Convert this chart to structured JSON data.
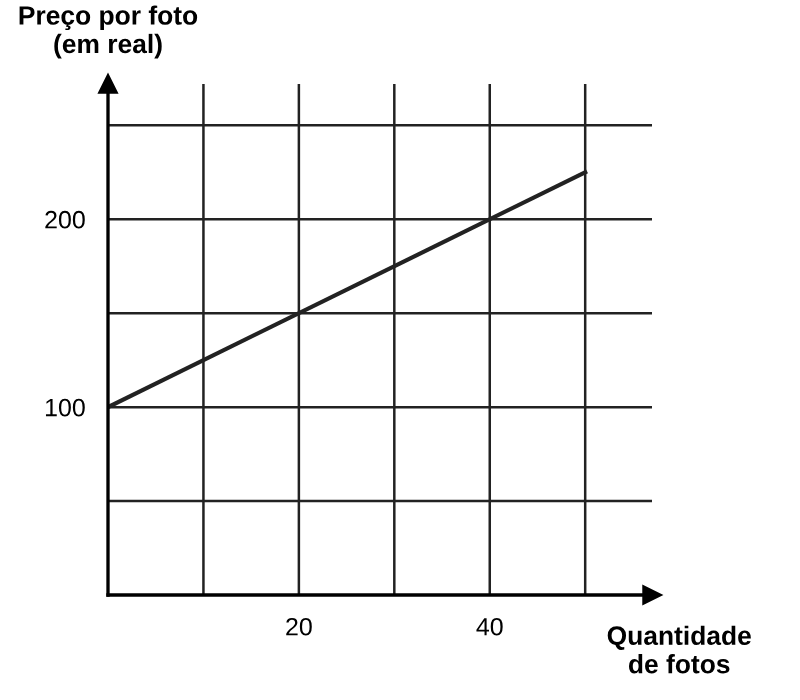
{
  "chart_data": {
    "type": "line",
    "ylabel": "Preço por foto\n(em real)",
    "xlabel": "Quantidade\nde fotos",
    "x": [
      0,
      50
    ],
    "series": [
      {
        "color": "#222222",
        "values": [
          100,
          225
        ]
      }
    ],
    "xlim": [
      0,
      57
    ],
    "ylim": [
      0,
      272
    ],
    "xticks": [
      {
        "value": 10,
        "label": null
      },
      20,
      {
        "value": 30,
        "label": null
      },
      40,
      {
        "value": 50,
        "label": null
      }
    ],
    "yticks": [
      {
        "value": 50,
        "label": null
      },
      100,
      {
        "value": 150,
        "label": null
      },
      200,
      {
        "value": 250,
        "label": null
      }
    ],
    "grid": true,
    "legend": false
  }
}
